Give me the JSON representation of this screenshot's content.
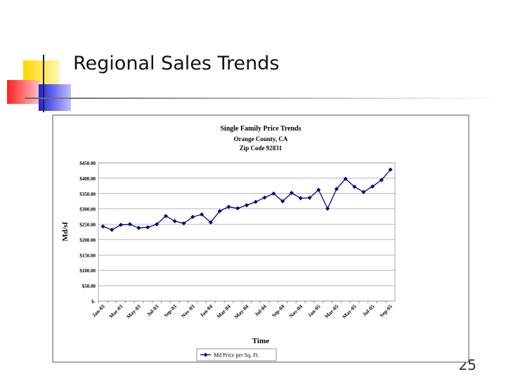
{
  "slide_title": "Regional Sales Trends",
  "page_number": "25",
  "chart_data": {
    "type": "line",
    "title": "Single Family Price Trends",
    "subtitle": [
      "Orange County, CA",
      "Zip Code 92831"
    ],
    "x_label": "Time",
    "y_label": "Md/sf",
    "categories": [
      "Jan-03",
      null,
      "Mar-03",
      null,
      "May-03",
      null,
      "Jul-03",
      null,
      "Sep-03",
      null,
      "Nov-03",
      null,
      "Jan-04",
      null,
      "Mar-04",
      null,
      "May-04",
      null,
      "Jul-04",
      null,
      "Sep-04",
      null,
      "Nov-04",
      null,
      "Jan-05",
      null,
      "Mar-05",
      null,
      "May-05",
      null,
      "Jul-05",
      null,
      "Sep-05"
    ],
    "series": [
      {
        "name": "Md Price per Sq. Ft.",
        "color": "#000080",
        "values": [
          243,
          232,
          248,
          250,
          238,
          240,
          250,
          277,
          260,
          253,
          274,
          282,
          256,
          293,
          307,
          302,
          312,
          323,
          337,
          350,
          325,
          352,
          335,
          336,
          362,
          301,
          365,
          398,
          372,
          355,
          373,
          394,
          428
        ]
      }
    ],
    "ylim": [
      0,
      450
    ],
    "yticks": [
      {
        "value": 0,
        "label": "$-"
      },
      {
        "value": 50,
        "label": "$50.00"
      },
      {
        "value": 100,
        "label": "$100.00"
      },
      {
        "value": 150,
        "label": "$150.00"
      },
      {
        "value": 200,
        "label": "$200.00"
      },
      {
        "value": 250,
        "label": "$250.00"
      },
      {
        "value": 300,
        "label": "$300.00"
      },
      {
        "value": 350,
        "label": "$350.00"
      },
      {
        "value": 400,
        "label": "$400.00"
      },
      {
        "value": 450,
        "label": "$450.00"
      }
    ],
    "grid": true,
    "legend": "bottom"
  }
}
